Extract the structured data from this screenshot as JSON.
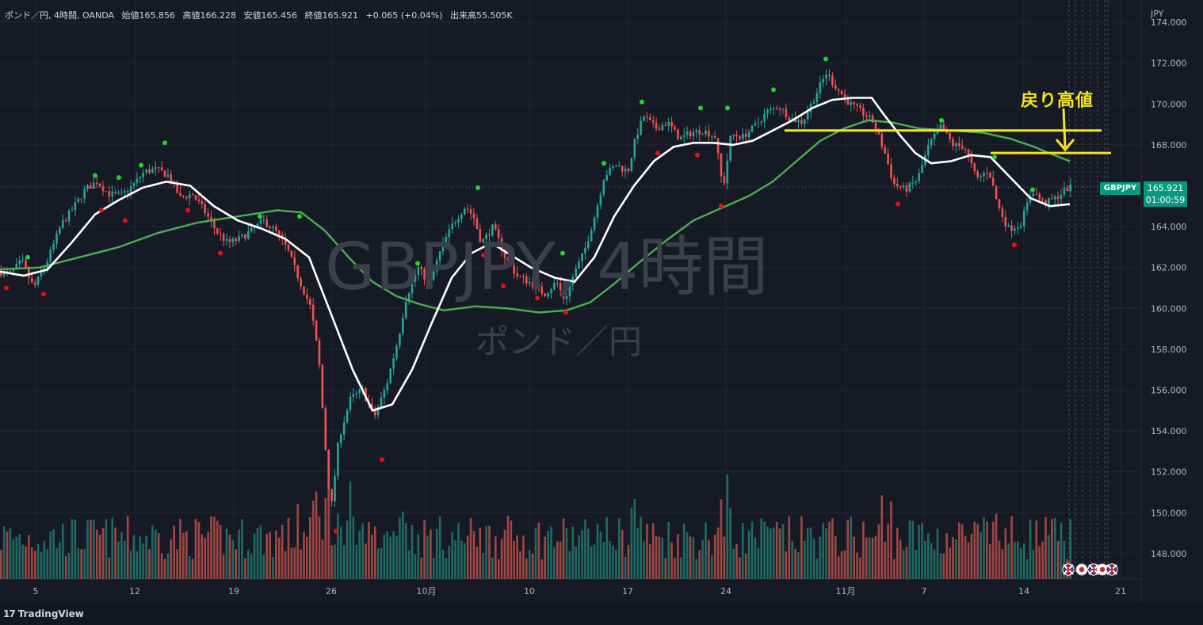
{
  "header": {
    "symbol": "ポンド／円, 4時間, OANDA",
    "open": "始値165.856",
    "high": "高値166.228",
    "low": "安値165.456",
    "close": "終値165.921",
    "change": "+0.065 (+0.04%)",
    "volume": "出来高55.505K"
  },
  "currency": "JPY",
  "watermark": {
    "symbol": "GBPJPY, 4時間",
    "name": "ポンド／円"
  },
  "annotation": "戻り高値",
  "price_tag": {
    "symbol": "GBPJPY",
    "price": "165.921",
    "countdown": "01:00:59"
  },
  "branding": "TradingView",
  "colors": {
    "background": "#161a25",
    "grid": "#232733",
    "up": "#26a69a",
    "down": "#ef5350",
    "volume_up": "#1f6b62",
    "volume_down": "#a14744",
    "ma_fast": "#ffffff",
    "ma_slow": "#4caf50",
    "hline": "#f5e41e",
    "fractal_up": "#22d32b",
    "fractal_down": "#e81010"
  },
  "chart_data": {
    "type": "candlestick",
    "title": "GBPJPY, 4時間",
    "y_axis": {
      "ylim": [
        146.7,
        174.0
      ],
      "ticks": [
        "174.000",
        "172.000",
        "170.000",
        "168.000",
        "166.000",
        "164.000",
        "162.000",
        "160.000",
        "158.000",
        "156.000",
        "154.000",
        "152.000",
        "150.000",
        "148.000"
      ]
    },
    "x_axis": {
      "ticks": [
        "5",
        "12",
        "19",
        "26",
        "10月",
        "10",
        "17",
        "24",
        "11月",
        "7",
        "14",
        "21"
      ]
    },
    "price_path": [
      [
        0,
        161.8
      ],
      [
        15,
        161.7
      ],
      [
        30,
        162.3
      ],
      [
        45,
        161.0
      ],
      [
        60,
        162.1
      ],
      [
        80,
        164.1
      ],
      [
        95,
        164.9
      ],
      [
        110,
        165.8
      ],
      [
        125,
        166.2
      ],
      [
        140,
        165.6
      ],
      [
        155,
        165.5
      ],
      [
        170,
        166.0
      ],
      [
        185,
        166.7
      ],
      [
        200,
        166.8
      ],
      [
        215,
        166.5
      ],
      [
        230,
        165.4
      ],
      [
        245,
        165.6
      ],
      [
        260,
        164.8
      ],
      [
        275,
        163.8
      ],
      [
        290,
        163.2
      ],
      [
        305,
        163.4
      ],
      [
        320,
        163.8
      ],
      [
        335,
        164.3
      ],
      [
        350,
        163.8
      ],
      [
        365,
        162.9
      ],
      [
        380,
        161.4
      ],
      [
        395,
        160.0
      ],
      [
        405,
        157.5
      ],
      [
        412,
        153.8
      ],
      [
        420,
        150.0
      ],
      [
        430,
        153.6
      ],
      [
        445,
        155.6
      ],
      [
        460,
        156.0
      ],
      [
        475,
        154.7
      ],
      [
        490,
        156.2
      ],
      [
        505,
        158.5
      ],
      [
        515,
        160.5
      ],
      [
        530,
        162.0
      ],
      [
        545,
        161.2
      ],
      [
        560,
        163.0
      ],
      [
        575,
        164.2
      ],
      [
        590,
        165.0
      ],
      [
        600,
        164.5
      ],
      [
        610,
        163.2
      ],
      [
        625,
        164.0
      ],
      [
        640,
        162.5
      ],
      [
        655,
        161.6
      ],
      [
        670,
        161.3
      ],
      [
        690,
        160.7
      ],
      [
        705,
        161.3
      ],
      [
        715,
        160.4
      ],
      [
        725,
        161.5
      ],
      [
        740,
        162.8
      ],
      [
        755,
        164.8
      ],
      [
        765,
        166.5
      ],
      [
        780,
        167.0
      ],
      [
        795,
        166.7
      ],
      [
        805,
        168.4
      ],
      [
        815,
        169.4
      ],
      [
        830,
        168.8
      ],
      [
        845,
        169.1
      ],
      [
        860,
        168.3
      ],
      [
        875,
        168.6
      ],
      [
        890,
        168.7
      ],
      [
        905,
        168.4
      ],
      [
        915,
        165.8
      ],
      [
        925,
        168.5
      ],
      [
        940,
        168.4
      ],
      [
        955,
        168.9
      ],
      [
        970,
        169.6
      ],
      [
        985,
        169.9
      ],
      [
        1000,
        169.3
      ],
      [
        1015,
        169.1
      ],
      [
        1030,
        170.3
      ],
      [
        1045,
        171.5
      ],
      [
        1060,
        170.7
      ],
      [
        1075,
        170.0
      ],
      [
        1090,
        169.6
      ],
      [
        1105,
        169.1
      ],
      [
        1120,
        167.5
      ],
      [
        1130,
        166.1
      ],
      [
        1145,
        165.8
      ],
      [
        1160,
        166.3
      ],
      [
        1175,
        168.0
      ],
      [
        1190,
        168.9
      ],
      [
        1205,
        168.0
      ],
      [
        1220,
        167.9
      ],
      [
        1235,
        166.3
      ],
      [
        1250,
        166.8
      ],
      [
        1262,
        165.0
      ],
      [
        1275,
        163.9
      ],
      [
        1290,
        164.1
      ],
      [
        1305,
        165.8
      ],
      [
        1320,
        165.1
      ],
      [
        1335,
        165.4
      ],
      [
        1350,
        165.9
      ]
    ],
    "ma_fast": [
      [
        0,
        161.8
      ],
      [
        30,
        161.6
      ],
      [
        60,
        161.9
      ],
      [
        90,
        163.2
      ],
      [
        120,
        164.6
      ],
      [
        150,
        165.3
      ],
      [
        180,
        165.9
      ],
      [
        210,
        166.2
      ],
      [
        240,
        166.0
      ],
      [
        270,
        165.0
      ],
      [
        300,
        164.3
      ],
      [
        330,
        163.9
      ],
      [
        360,
        163.4
      ],
      [
        390,
        162.5
      ],
      [
        420,
        159.5
      ],
      [
        445,
        157.0
      ],
      [
        470,
        155.0
      ],
      [
        495,
        155.3
      ],
      [
        520,
        157.0
      ],
      [
        545,
        159.3
      ],
      [
        570,
        161.5
      ],
      [
        595,
        162.7
      ],
      [
        620,
        163.2
      ],
      [
        645,
        162.6
      ],
      [
        670,
        162.0
      ],
      [
        700,
        161.5
      ],
      [
        725,
        161.3
      ],
      [
        750,
        162.5
      ],
      [
        775,
        164.5
      ],
      [
        800,
        166.0
      ],
      [
        825,
        167.2
      ],
      [
        850,
        167.9
      ],
      [
        875,
        168.1
      ],
      [
        900,
        168.1
      ],
      [
        925,
        168.0
      ],
      [
        950,
        168.2
      ],
      [
        975,
        168.7
      ],
      [
        1000,
        169.2
      ],
      [
        1025,
        169.8
      ],
      [
        1050,
        170.2
      ],
      [
        1075,
        170.3
      ],
      [
        1100,
        170.3
      ],
      [
        1115,
        169.5
      ],
      [
        1135,
        168.5
      ],
      [
        1155,
        167.6
      ],
      [
        1175,
        167.1
      ],
      [
        1200,
        167.2
      ],
      [
        1225,
        167.5
      ],
      [
        1250,
        167.4
      ],
      [
        1275,
        166.4
      ],
      [
        1300,
        165.4
      ],
      [
        1325,
        165.0
      ],
      [
        1350,
        165.1
      ]
    ],
    "ma_slow": [
      [
        0,
        161.9
      ],
      [
        50,
        162.0
      ],
      [
        100,
        162.5
      ],
      [
        150,
        163.0
      ],
      [
        200,
        163.7
      ],
      [
        250,
        164.2
      ],
      [
        300,
        164.5
      ],
      [
        350,
        164.8
      ],
      [
        380,
        164.7
      ],
      [
        410,
        163.8
      ],
      [
        440,
        162.5
      ],
      [
        470,
        161.3
      ],
      [
        500,
        160.6
      ],
      [
        530,
        160.2
      ],
      [
        560,
        159.9
      ],
      [
        600,
        160.1
      ],
      [
        640,
        160.0
      ],
      [
        680,
        159.8
      ],
      [
        715,
        159.9
      ],
      [
        745,
        160.3
      ],
      [
        775,
        161.2
      ],
      [
        805,
        162.2
      ],
      [
        840,
        163.3
      ],
      [
        875,
        164.3
      ],
      [
        910,
        164.9
      ],
      [
        945,
        165.5
      ],
      [
        975,
        166.2
      ],
      [
        1005,
        167.2
      ],
      [
        1035,
        168.2
      ],
      [
        1065,
        168.8
      ],
      [
        1095,
        169.2
      ],
      [
        1125,
        169.1
      ],
      [
        1160,
        168.8
      ],
      [
        1200,
        168.7
      ],
      [
        1240,
        168.6
      ],
      [
        1275,
        168.3
      ],
      [
        1305,
        167.9
      ],
      [
        1330,
        167.5
      ],
      [
        1350,
        167.2
      ]
    ],
    "horizontal_lines": [
      {
        "price": 168.7,
        "x_from": 990,
        "x_to": 1390
      },
      {
        "price": 167.6,
        "x_from": 1250,
        "x_to": 1402
      }
    ],
    "fractal_highs": [
      [
        35,
        162.5
      ],
      [
        120,
        166.5
      ],
      [
        150,
        166.4
      ],
      [
        178,
        167.0
      ],
      [
        208,
        168.1
      ],
      [
        328,
        164.5
      ],
      [
        378,
        164.5
      ],
      [
        527,
        162.2
      ],
      [
        603,
        165.9
      ],
      [
        710,
        162.7
      ],
      [
        762,
        167.1
      ],
      [
        810,
        170.1
      ],
      [
        884,
        169.8
      ],
      [
        918,
        169.8
      ],
      [
        976,
        170.7
      ],
      [
        1042,
        172.2
      ],
      [
        1188,
        169.2
      ],
      [
        1255,
        167.4
      ],
      [
        1303,
        165.8
      ]
    ],
    "fractal_lows": [
      [
        8,
        161.0
      ],
      [
        55,
        160.7
      ],
      [
        128,
        164.8
      ],
      [
        158,
        164.3
      ],
      [
        237,
        164.8
      ],
      [
        278,
        162.7
      ],
      [
        424,
        149.1
      ],
      [
        482,
        152.6
      ],
      [
        610,
        162.6
      ],
      [
        635,
        161.1
      ],
      [
        678,
        160.5
      ],
      [
        714,
        159.8
      ],
      [
        830,
        167.6
      ],
      [
        880,
        167.5
      ],
      [
        910,
        165.0
      ],
      [
        1133,
        165.1
      ],
      [
        1280,
        163.1
      ]
    ]
  }
}
